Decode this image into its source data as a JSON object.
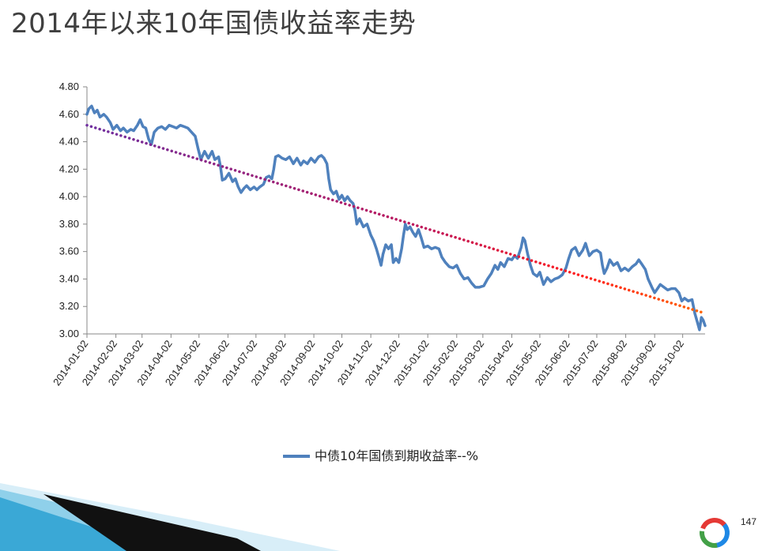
{
  "slide": {
    "title": "2014年以来10年国债收益率走势",
    "page_number": "147"
  },
  "chart_data": {
    "type": "line",
    "title": "",
    "xlabel": "",
    "ylabel": "",
    "ylim": [
      3.0,
      4.8
    ],
    "yticks": [
      "3.00",
      "3.20",
      "3.40",
      "3.60",
      "3.80",
      "4.00",
      "4.20",
      "4.40",
      "4.60",
      "4.80"
    ],
    "xticks": [
      "2014-01-02",
      "2014-02-02",
      "2014-03-02",
      "2014-04-02",
      "2014-05-02",
      "2014-06-02",
      "2014-07-02",
      "2014-08-02",
      "2014-09-02",
      "2014-10-02",
      "2014-11-02",
      "2014-12-02",
      "2015-01-02",
      "2015-02-02",
      "2015-03-02",
      "2015-04-02",
      "2015-05-02",
      "2015-06-02",
      "2015-07-02",
      "2015-08-02",
      "2015-09-02",
      "2015-10-02"
    ],
    "x_range": [
      "2014-01-02",
      "2015-10-26"
    ],
    "grid": false,
    "legend": "bottom",
    "series": [
      {
        "name": "中债10年国债到期收益率--%",
        "color": "#4f81bd",
        "points": [
          [
            "2014-01-02",
            4.6
          ],
          [
            "2014-01-04",
            4.64
          ],
          [
            "2014-01-07",
            4.66
          ],
          [
            "2014-01-10",
            4.61
          ],
          [
            "2014-01-13",
            4.63
          ],
          [
            "2014-01-16",
            4.58
          ],
          [
            "2014-01-20",
            4.6
          ],
          [
            "2014-01-23",
            4.58
          ],
          [
            "2014-01-27",
            4.54
          ],
          [
            "2014-01-30",
            4.49
          ],
          [
            "2014-02-03",
            4.52
          ],
          [
            "2014-02-07",
            4.48
          ],
          [
            "2014-02-10",
            4.5
          ],
          [
            "2014-02-14",
            4.47
          ],
          [
            "2014-02-18",
            4.49
          ],
          [
            "2014-02-21",
            4.48
          ],
          [
            "2014-02-25",
            4.52
          ],
          [
            "2014-02-28",
            4.56
          ],
          [
            "2014-03-03",
            4.51
          ],
          [
            "2014-03-06",
            4.5
          ],
          [
            "2014-03-09",
            4.42
          ],
          [
            "2014-03-12",
            4.38
          ],
          [
            "2014-03-15",
            4.47
          ],
          [
            "2014-03-19",
            4.5
          ],
          [
            "2014-03-23",
            4.51
          ],
          [
            "2014-03-27",
            4.49
          ],
          [
            "2014-03-31",
            4.52
          ],
          [
            "2014-04-04",
            4.51
          ],
          [
            "2014-04-08",
            4.5
          ],
          [
            "2014-04-12",
            4.52
          ],
          [
            "2014-04-16",
            4.51
          ],
          [
            "2014-04-20",
            4.5
          ],
          [
            "2014-04-24",
            4.47
          ],
          [
            "2014-04-28",
            4.44
          ],
          [
            "2014-05-01",
            4.35
          ],
          [
            "2014-05-04",
            4.27
          ],
          [
            "2014-05-08",
            4.33
          ],
          [
            "2014-05-12",
            4.28
          ],
          [
            "2014-05-16",
            4.33
          ],
          [
            "2014-05-19",
            4.27
          ],
          [
            "2014-05-23",
            4.29
          ],
          [
            "2014-05-25",
            4.22
          ],
          [
            "2014-05-27",
            4.12
          ],
          [
            "2014-05-30",
            4.13
          ],
          [
            "2014-06-03",
            4.17
          ],
          [
            "2014-06-07",
            4.11
          ],
          [
            "2014-06-10",
            4.13
          ],
          [
            "2014-06-13",
            4.07
          ],
          [
            "2014-06-16",
            4.03
          ],
          [
            "2014-06-19",
            4.06
          ],
          [
            "2014-06-22",
            4.08
          ],
          [
            "2014-06-26",
            4.05
          ],
          [
            "2014-06-30",
            4.07
          ],
          [
            "2014-07-03",
            4.05
          ],
          [
            "2014-07-06",
            4.07
          ],
          [
            "2014-07-10",
            4.09
          ],
          [
            "2014-07-13",
            4.14
          ],
          [
            "2014-07-16",
            4.15
          ],
          [
            "2014-07-19",
            4.13
          ],
          [
            "2014-07-21",
            4.2
          ],
          [
            "2014-07-23",
            4.29
          ],
          [
            "2014-07-26",
            4.3
          ],
          [
            "2014-07-30",
            4.28
          ],
          [
            "2014-08-03",
            4.27
          ],
          [
            "2014-08-07",
            4.29
          ],
          [
            "2014-08-11",
            4.24
          ],
          [
            "2014-08-15",
            4.28
          ],
          [
            "2014-08-19",
            4.23
          ],
          [
            "2014-08-22",
            4.26
          ],
          [
            "2014-08-26",
            4.24
          ],
          [
            "2014-08-30",
            4.28
          ],
          [
            "2014-09-03",
            4.25
          ],
          [
            "2014-09-07",
            4.29
          ],
          [
            "2014-09-10",
            4.3
          ],
          [
            "2014-09-13",
            4.28
          ],
          [
            "2014-09-16",
            4.24
          ],
          [
            "2014-09-18",
            4.13
          ],
          [
            "2014-09-20",
            4.05
          ],
          [
            "2014-09-23",
            4.02
          ],
          [
            "2014-09-26",
            4.04
          ],
          [
            "2014-09-29",
            3.98
          ],
          [
            "2014-10-02",
            4.01
          ],
          [
            "2014-10-05",
            3.97
          ],
          [
            "2014-10-08",
            4.0
          ],
          [
            "2014-10-11",
            3.97
          ],
          [
            "2014-10-14",
            3.95
          ],
          [
            "2014-10-16",
            3.9
          ],
          [
            "2014-10-18",
            3.8
          ],
          [
            "2014-10-21",
            3.84
          ],
          [
            "2014-10-25",
            3.78
          ],
          [
            "2014-10-29",
            3.8
          ],
          [
            "2014-11-02",
            3.72
          ],
          [
            "2014-11-05",
            3.68
          ],
          [
            "2014-11-08",
            3.62
          ],
          [
            "2014-11-11",
            3.55
          ],
          [
            "2014-11-13",
            3.5
          ],
          [
            "2014-11-15",
            3.58
          ],
          [
            "2014-11-18",
            3.65
          ],
          [
            "2014-11-21",
            3.62
          ],
          [
            "2014-11-24",
            3.65
          ],
          [
            "2014-11-26",
            3.52
          ],
          [
            "2014-11-29",
            3.55
          ],
          [
            "2014-12-02",
            3.52
          ],
          [
            "2014-12-05",
            3.62
          ],
          [
            "2014-12-07",
            3.72
          ],
          [
            "2014-12-09",
            3.8
          ],
          [
            "2014-12-11",
            3.76
          ],
          [
            "2014-12-14",
            3.78
          ],
          [
            "2014-12-17",
            3.74
          ],
          [
            "2014-12-20",
            3.71
          ],
          [
            "2014-12-23",
            3.76
          ],
          [
            "2014-12-26",
            3.7
          ],
          [
            "2014-12-29",
            3.63
          ],
          [
            "2015-01-02",
            3.64
          ],
          [
            "2015-01-06",
            3.62
          ],
          [
            "2015-01-10",
            3.63
          ],
          [
            "2015-01-14",
            3.62
          ],
          [
            "2015-01-17",
            3.56
          ],
          [
            "2015-01-21",
            3.52
          ],
          [
            "2015-01-25",
            3.49
          ],
          [
            "2015-01-29",
            3.48
          ],
          [
            "2015-02-02",
            3.5
          ],
          [
            "2015-02-06",
            3.44
          ],
          [
            "2015-02-10",
            3.4
          ],
          [
            "2015-02-14",
            3.41
          ],
          [
            "2015-02-18",
            3.37
          ],
          [
            "2015-02-22",
            3.34
          ],
          [
            "2015-02-26",
            3.34
          ],
          [
            "2015-03-03",
            3.35
          ],
          [
            "2015-03-07",
            3.4
          ],
          [
            "2015-03-11",
            3.44
          ],
          [
            "2015-03-15",
            3.5
          ],
          [
            "2015-03-18",
            3.47
          ],
          [
            "2015-03-21",
            3.52
          ],
          [
            "2015-03-25",
            3.49
          ],
          [
            "2015-03-29",
            3.55
          ],
          [
            "2015-04-02",
            3.54
          ],
          [
            "2015-04-05",
            3.57
          ],
          [
            "2015-04-08",
            3.55
          ],
          [
            "2015-04-12",
            3.63
          ],
          [
            "2015-04-14",
            3.7
          ],
          [
            "2015-04-16",
            3.68
          ],
          [
            "2015-04-19",
            3.58
          ],
          [
            "2015-04-22",
            3.5
          ],
          [
            "2015-04-25",
            3.44
          ],
          [
            "2015-04-29",
            3.42
          ],
          [
            "2015-05-02",
            3.45
          ],
          [
            "2015-05-06",
            3.36
          ],
          [
            "2015-05-10",
            3.41
          ],
          [
            "2015-05-14",
            3.38
          ],
          [
            "2015-05-18",
            3.4
          ],
          [
            "2015-05-22",
            3.41
          ],
          [
            "2015-05-26",
            3.43
          ],
          [
            "2015-05-30",
            3.48
          ],
          [
            "2015-06-02",
            3.55
          ],
          [
            "2015-06-05",
            3.61
          ],
          [
            "2015-06-09",
            3.63
          ],
          [
            "2015-06-13",
            3.57
          ],
          [
            "2015-06-17",
            3.61
          ],
          [
            "2015-06-20",
            3.66
          ],
          [
            "2015-06-24",
            3.57
          ],
          [
            "2015-06-28",
            3.6
          ],
          [
            "2015-07-02",
            3.61
          ],
          [
            "2015-07-06",
            3.59
          ],
          [
            "2015-07-08",
            3.5
          ],
          [
            "2015-07-10",
            3.44
          ],
          [
            "2015-07-13",
            3.48
          ],
          [
            "2015-07-16",
            3.54
          ],
          [
            "2015-07-20",
            3.5
          ],
          [
            "2015-07-24",
            3.52
          ],
          [
            "2015-07-28",
            3.46
          ],
          [
            "2015-08-01",
            3.48
          ],
          [
            "2015-08-05",
            3.46
          ],
          [
            "2015-08-09",
            3.49
          ],
          [
            "2015-08-13",
            3.51
          ],
          [
            "2015-08-16",
            3.54
          ],
          [
            "2015-08-19",
            3.51
          ],
          [
            "2015-08-23",
            3.47
          ],
          [
            "2015-08-26",
            3.4
          ],
          [
            "2015-08-30",
            3.34
          ],
          [
            "2015-09-02",
            3.3
          ],
          [
            "2015-09-05",
            3.33
          ],
          [
            "2015-09-08",
            3.36
          ],
          [
            "2015-09-12",
            3.34
          ],
          [
            "2015-09-16",
            3.32
          ],
          [
            "2015-09-20",
            3.33
          ],
          [
            "2015-09-24",
            3.33
          ],
          [
            "2015-09-28",
            3.3
          ],
          [
            "2015-10-01",
            3.24
          ],
          [
            "2015-10-04",
            3.26
          ],
          [
            "2015-10-08",
            3.24
          ],
          [
            "2015-10-12",
            3.25
          ],
          [
            "2015-10-15",
            3.15
          ],
          [
            "2015-10-18",
            3.08
          ],
          [
            "2015-10-20",
            3.03
          ],
          [
            "2015-10-22",
            3.12
          ],
          [
            "2015-10-24",
            3.1
          ],
          [
            "2015-10-26",
            3.06
          ]
        ]
      }
    ],
    "trendline": {
      "start": [
        "2014-01-02",
        4.52
      ],
      "end": [
        "2015-10-26",
        3.15
      ],
      "color_start": "#7030a0",
      "color_end": "#ff6600"
    }
  }
}
